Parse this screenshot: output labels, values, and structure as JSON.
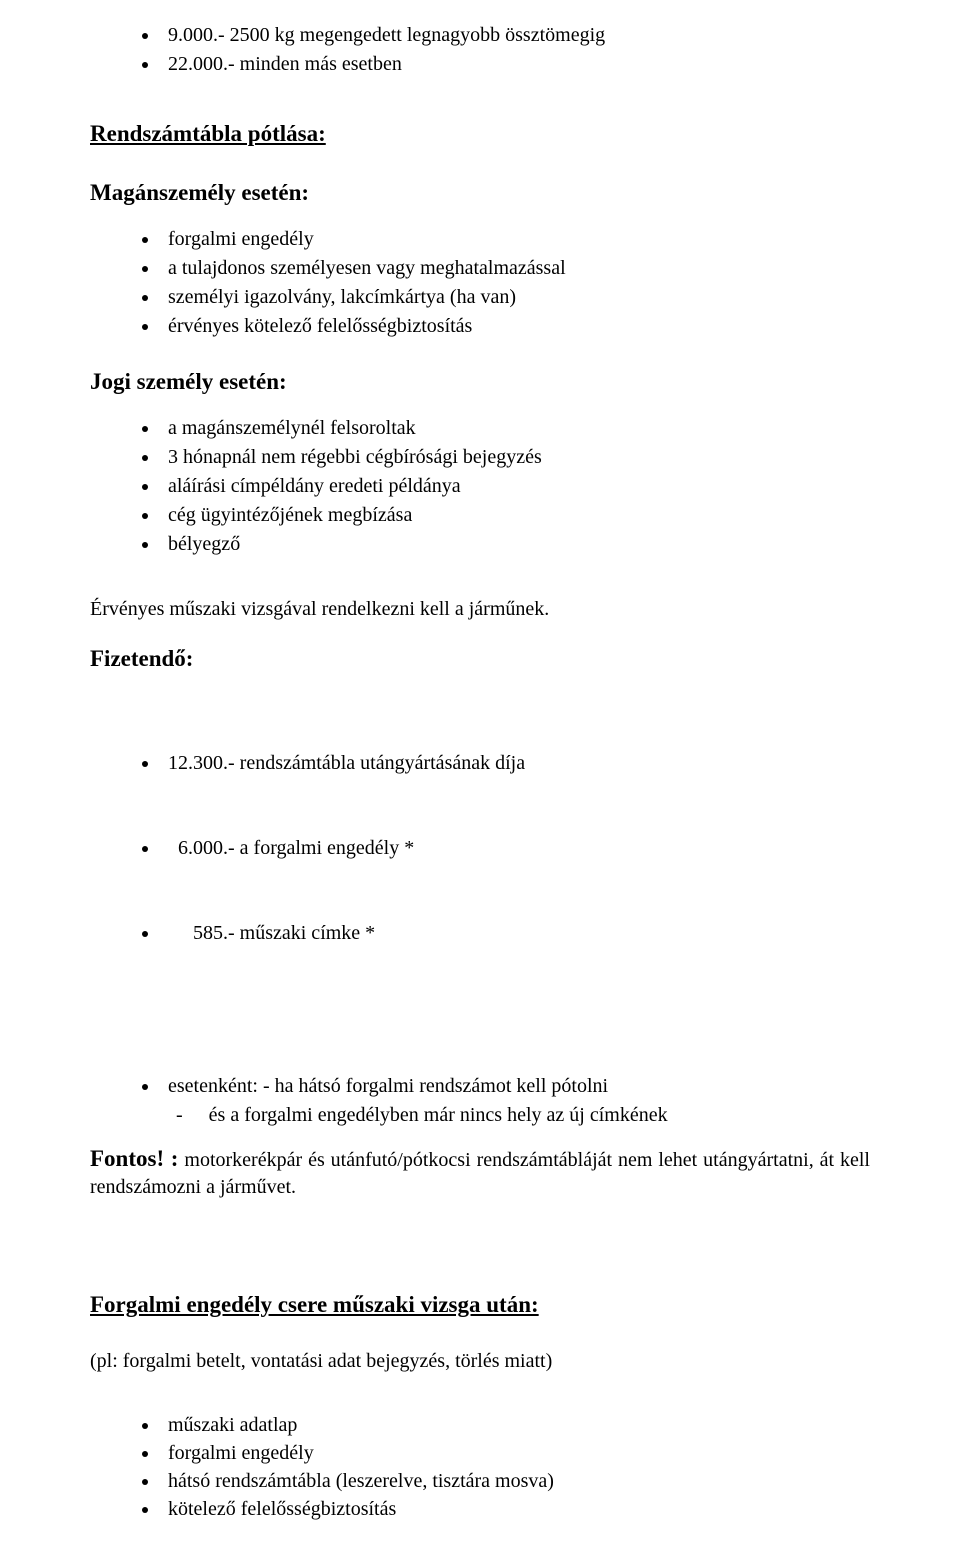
{
  "colors": {
    "text": "#000000",
    "background": "#ffffff"
  },
  "fonts": {
    "family": "Times New Roman",
    "base_size_pt": 15,
    "heading_size_pt": 17.5
  },
  "top_list": {
    "items": [
      "  9.000.- 2500 kg megengedett legnagyobb össztömegig",
      "22.000.- minden más esetben"
    ]
  },
  "section1": {
    "title": "Rendszámtábla pótlása:",
    "sub1": {
      "heading": "Magánszemély esetén:",
      "items": [
        "forgalmi engedély",
        "a tulajdonos személyesen vagy meghatalmazással",
        "személyi igazolvány, lakcímkártya (ha van)",
        "érvényes kötelező felelősségbiztosítás"
      ]
    },
    "sub2": {
      "heading": "Jogi személy esetén:",
      "items": [
        "a magánszemélynél felsoroltak",
        "3 hónapnál nem régebbi cégbírósági bejegyzés",
        "aláírási címpéldány eredeti példánya",
        "cég ügyintézőjének megbízása",
        "bélyegző"
      ]
    },
    "note": "Érvényes műszaki vizsgával rendelkezni kell a járműnek.",
    "sub3": {
      "heading": "Fizetendő:",
      "items": [
        "12.300.- rendszámtábla utángyártásának díja",
        "  6.000.- a forgalmi engedély *",
        "     585.- műszaki címke *"
      ]
    },
    "extra_list": {
      "line1": "esetenként:  - ha hátsó forgalmi rendszámot kell pótolni",
      "sub_dash": "-",
      "sub_text": "és a forgalmi engedélyben már nincs hely az új címkének"
    },
    "fontos": {
      "lead": "Fontos! :",
      "text": " motorkerékpár és utánfutó/pótkocsi rendszámtábláját nem lehet utángyártatni, át kell rendszámozni a járművet."
    }
  },
  "section2": {
    "title": "Forgalmi engedély csere műszaki vizsga után:",
    "note": "(pl: forgalmi betelt, vontatási adat bejegyzés, törlés miatt)",
    "items": [
      "műszaki adatlap",
      "forgalmi engedély",
      "hátsó rendszámtábla (leszerelve, tisztára mosva)",
      "kötelező felelősségbiztosítás"
    ]
  }
}
